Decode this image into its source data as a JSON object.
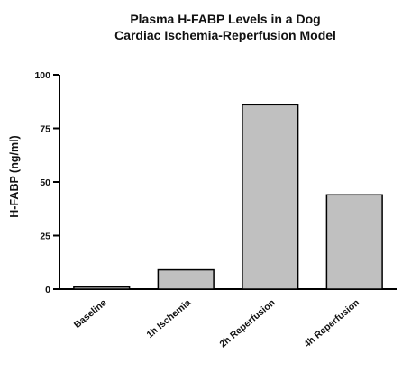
{
  "chart_data": {
    "type": "bar",
    "title": "Plasma H-FABP Levels in a Dog",
    "subtitle": "Cardiac Ischemia-Reperfusion Model",
    "xlabel": "",
    "ylabel": "H-FABP (ng/ml)",
    "categories": [
      "Baseline",
      "1h Ischemia",
      "2h Reperfusion",
      "4h Reperfusion"
    ],
    "values": [
      1,
      9,
      86,
      44
    ],
    "ylim": [
      0,
      100
    ],
    "yticks": [
      0,
      25,
      50,
      75,
      100
    ],
    "ytick_labels": [
      "0",
      "25",
      "50",
      "75",
      "100"
    ],
    "bar_color": "#c0c0c0",
    "bar_stroke": "#000000",
    "grid": false,
    "legend": "none"
  }
}
